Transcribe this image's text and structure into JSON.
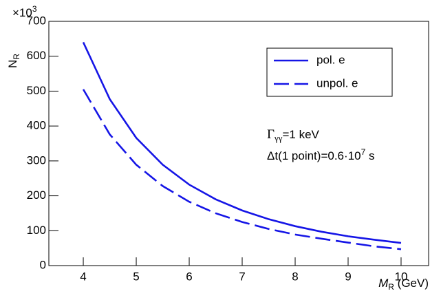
{
  "chart_data": {
    "type": "line",
    "x": [
      4,
      4.5,
      5,
      5.5,
      6,
      6.5,
      7,
      7.5,
      8,
      8.5,
      9,
      9.5,
      10
    ],
    "series": [
      {
        "name": "pol. e",
        "color": "#1515e6",
        "dash": "solid",
        "values": [
          640,
          477,
          366,
          289,
          232,
          190,
          158,
          133,
          113,
          97,
          84,
          74,
          65
        ]
      },
      {
        "name": "unpol. e",
        "color": "#1515e6",
        "dash": "dashed",
        "values": [
          505,
          376,
          289,
          228,
          183,
          150,
          125,
          105,
          89,
          77,
          66,
          55,
          47
        ]
      }
    ],
    "xlim": [
      3.35,
      10.52
    ],
    "xticks": [
      4,
      5,
      6,
      7,
      8,
      9,
      10
    ],
    "ylim": [
      0,
      700
    ],
    "yticks": [
      0,
      100,
      200,
      300,
      400,
      500,
      600,
      700
    ],
    "y_multiplier": "×10",
    "y_multiplier_exp": "3",
    "ylabel": "N",
    "ylabel_sub": "R",
    "xlabel": "M",
    "xlabel_sub": "R",
    "xlabel_unit": " (GeV)",
    "annotations": [
      {
        "main": "Γ",
        "sub": "γγ",
        "rest": "=1 keV"
      },
      {
        "main": "Δt(1 point)=0.6·10",
        "sup": "7",
        "rest": " s"
      }
    ]
  }
}
